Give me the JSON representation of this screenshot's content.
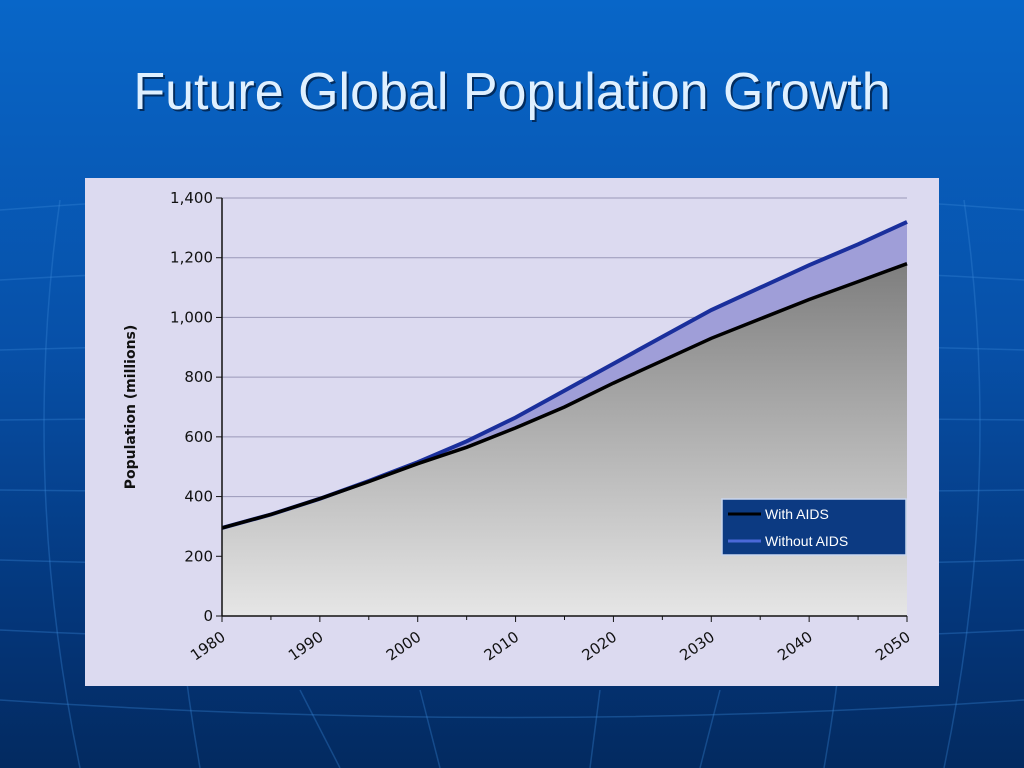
{
  "slide": {
    "title": "Future Global Population Growth"
  },
  "colors": {
    "with_aids": "#000000",
    "without_aids": "#1a2f9c",
    "gap_fill": "#9f9ed8",
    "legend_bg": "#0c3a82",
    "plot_bg": "#dcdaf0"
  },
  "chart_data": {
    "type": "area",
    "title": "",
    "xlabel": "",
    "ylabel": "Population (millions)",
    "xlim": [
      1980,
      2050
    ],
    "ylim": [
      0,
      1400
    ],
    "x_ticks": [
      "1980",
      "1990",
      "2000",
      "2010",
      "2020",
      "2030",
      "2040",
      "2050"
    ],
    "y_ticks": [
      "0",
      "200",
      "400",
      "600",
      "800",
      "1,000",
      "1,200",
      "1,400"
    ],
    "grid": true,
    "legend_position": "bottom-right",
    "x": [
      1980,
      1985,
      1990,
      1995,
      2000,
      2005,
      2010,
      2015,
      2020,
      2025,
      2030,
      2035,
      2040,
      2045,
      2050
    ],
    "series": [
      {
        "name": "With AIDS",
        "values": [
          295,
          340,
          393,
          450,
          510,
          565,
          630,
          700,
          780,
          855,
          930,
          995,
          1060,
          1120,
          1180
        ]
      },
      {
        "name": "Without AIDS",
        "values": [
          295,
          340,
          393,
          452,
          515,
          585,
          665,
          755,
          845,
          935,
          1025,
          1100,
          1175,
          1245,
          1320
        ]
      }
    ]
  }
}
